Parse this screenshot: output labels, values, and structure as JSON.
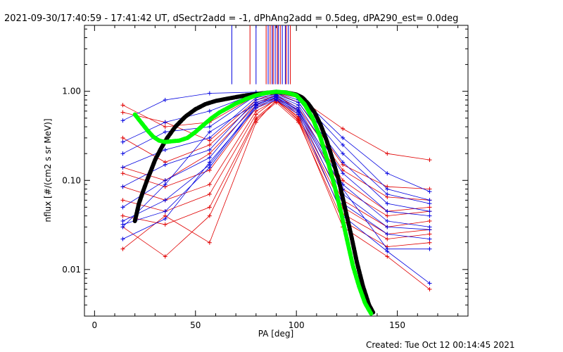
{
  "chart_data": {
    "type": "line",
    "title": "2021-09-30/17:40:59 - 17:41:42 UT, dSectr2add = -1, dPhAng2add = 0.5deg, dPA290_est=  0.0deg",
    "xlabel": "PA [deg]",
    "ylabel": "nflux [#/(cm2 s sr MeV)]",
    "footer": "Created: Tue Oct 12 00:14:45 2021",
    "xlim": [
      -5,
      185
    ],
    "ylim": [
      0.003,
      5.5
    ],
    "yscale": "log",
    "x_ticks": [
      0,
      50,
      100,
      150
    ],
    "x_tick_labels": [
      "0",
      "50",
      "100",
      "150"
    ],
    "y_ticks": [
      0.01,
      0.1,
      1.0
    ],
    "y_tick_labels": [
      "0.01",
      "0.10",
      "1.00"
    ],
    "colors": {
      "red": "#e00000",
      "blue": "#0000e0",
      "black": "#000000",
      "green": "#00ff00"
    },
    "pa_markers": {
      "y_from": 1.2,
      "y_to": 5.5,
      "red": [
        77,
        85,
        87,
        88.5,
        90.5,
        92,
        95,
        97
      ],
      "blue": [
        68,
        80,
        86,
        88,
        89.5,
        91,
        93,
        94.5,
        96
      ]
    },
    "pa_bins": [
      14,
      35,
      57,
      80,
      90,
      101,
      123,
      145,
      166
    ],
    "series_red": [
      [
        0.7,
        0.4,
        0.45,
        0.9,
        0.95,
        0.85,
        0.38,
        0.2,
        0.17
      ],
      [
        0.58,
        0.45,
        0.28,
        0.8,
        0.95,
        0.75,
        0.15,
        0.085,
        0.08
      ],
      [
        0.3,
        0.16,
        0.25,
        0.75,
        0.9,
        0.65,
        0.13,
        0.065,
        0.06
      ],
      [
        0.14,
        0.1,
        0.2,
        0.7,
        0.92,
        0.6,
        0.1,
        0.045,
        0.05
      ],
      [
        0.12,
        0.085,
        0.13,
        0.65,
        0.85,
        0.55,
        0.08,
        0.04,
        0.045
      ],
      [
        0.085,
        0.06,
        0.09,
        0.6,
        0.8,
        0.52,
        0.06,
        0.03,
        0.035
      ],
      [
        0.06,
        0.045,
        0.07,
        0.55,
        0.82,
        0.5,
        0.05,
        0.025,
        0.028
      ],
      [
        0.04,
        0.032,
        0.05,
        0.5,
        0.78,
        0.48,
        0.042,
        0.022,
        0.025
      ],
      [
        0.03,
        0.014,
        0.04,
        0.48,
        0.75,
        0.45,
        0.035,
        0.018,
        0.02
      ],
      [
        0.017,
        0.04,
        0.02,
        0.45,
        0.8,
        0.47,
        0.03,
        0.014,
        0.006
      ]
    ],
    "series_blue": [
      [
        0.47,
        0.8,
        0.95,
        0.98,
        0.99,
        0.9,
        0.3,
        0.12,
        0.075
      ],
      [
        0.27,
        0.45,
        0.6,
        0.95,
        0.98,
        0.85,
        0.25,
        0.08,
        0.06
      ],
      [
        0.2,
        0.35,
        0.4,
        0.9,
        0.95,
        0.8,
        0.2,
        0.07,
        0.055
      ],
      [
        0.14,
        0.22,
        0.3,
        0.85,
        0.92,
        0.75,
        0.16,
        0.055,
        0.045
      ],
      [
        0.085,
        0.15,
        0.22,
        0.8,
        0.9,
        0.7,
        0.12,
        0.045,
        0.04
      ],
      [
        0.05,
        0.1,
        0.18,
        0.75,
        0.88,
        0.65,
        0.09,
        0.035,
        0.03
      ],
      [
        0.035,
        0.06,
        0.15,
        0.7,
        0.85,
        0.6,
        0.07,
        0.03,
        0.028
      ],
      [
        0.032,
        0.045,
        0.14,
        0.68,
        0.82,
        0.58,
        0.055,
        0.025,
        0.022
      ],
      [
        0.022,
        0.037,
        0.16,
        0.65,
        0.8,
        0.55,
        0.04,
        0.016,
        0.007
      ],
      [
        0.03,
        0.09,
        0.35,
        0.72,
        0.86,
        0.62,
        0.08,
        0.017,
        0.017
      ]
    ],
    "fit_black": {
      "x": [
        20,
        22,
        24,
        26,
        28,
        30,
        33,
        36,
        40,
        45,
        50,
        55,
        60,
        65,
        70,
        75,
        80,
        85,
        90,
        95,
        100,
        103,
        106,
        109,
        112,
        115,
        118,
        121,
        124,
        127,
        130,
        133,
        136,
        138
      ],
      "y": [
        0.035,
        0.055,
        0.075,
        0.1,
        0.13,
        0.17,
        0.23,
        0.3,
        0.4,
        0.52,
        0.63,
        0.72,
        0.78,
        0.82,
        0.86,
        0.9,
        0.93,
        0.96,
        0.98,
        0.97,
        0.92,
        0.85,
        0.72,
        0.58,
        0.42,
        0.28,
        0.17,
        0.1,
        0.05,
        0.025,
        0.012,
        0.0065,
        0.004,
        0.0033
      ]
    },
    "fit_green": {
      "x": [
        20,
        23,
        26,
        29,
        32,
        35,
        38,
        42,
        46,
        50,
        54,
        58,
        62,
        66,
        70,
        75,
        80,
        85,
        90,
        95,
        100,
        104,
        108,
        112,
        116,
        119,
        122,
        125,
        128,
        131,
        134,
        137
      ],
      "y": [
        0.55,
        0.45,
        0.37,
        0.31,
        0.28,
        0.27,
        0.275,
        0.28,
        0.3,
        0.35,
        0.42,
        0.5,
        0.58,
        0.65,
        0.73,
        0.82,
        0.9,
        0.96,
        0.99,
        0.97,
        0.9,
        0.72,
        0.5,
        0.3,
        0.15,
        0.085,
        0.045,
        0.022,
        0.011,
        0.0065,
        0.0042,
        0.0032
      ]
    }
  }
}
